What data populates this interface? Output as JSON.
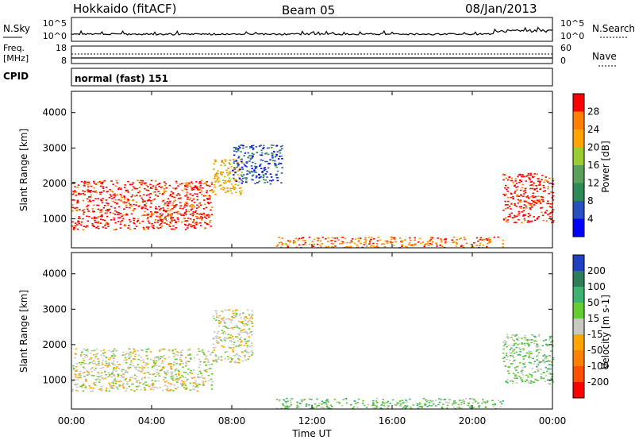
{
  "header": {
    "station": "Hokkaido (fitACF)",
    "beam": "Beam 05",
    "date": "08/Jan/2013"
  },
  "strip": {
    "nsky_label": "N.Sky",
    "nsky_top": "10^5",
    "nsky_bottom": "10^0",
    "nsearch_top": "10^5",
    "nsearch_bottom": "10^0",
    "nsearch_label": "N.Search",
    "freq_label_1": "Freq.",
    "freq_label_2": "[MHz]",
    "freq_top": "18",
    "freq_bottom": "8",
    "nave_top": "60",
    "nave_bottom": "0",
    "nave_label": "Nave",
    "cpid_label": "CPID",
    "cpid_value": "normal (fast) 151"
  },
  "chart_data": [
    {
      "type": "heatmap",
      "panel": "power",
      "ylabel": "Slant Range [km]",
      "yticks": [
        1000,
        2000,
        3000,
        4000
      ],
      "ylim": [
        180,
        4600
      ],
      "xlim": [
        0,
        24
      ],
      "colorbar_label": "Power [dB]",
      "colorbar_ticks": [
        "28",
        "24",
        "20",
        "16",
        "12",
        "8",
        "4"
      ],
      "colorbar_range": [
        0,
        32
      ],
      "colors": [
        "#0000ff",
        "#2850c0",
        "#2e8b57",
        "#5aa05a",
        "#9acd32",
        "#ffa500",
        "#ff7f00",
        "#ff0000"
      ],
      "regions": [
        {
          "name": "nightside echoes",
          "t": [
            0.0,
            7.0
          ],
          "range_km": [
            700,
            2100
          ],
          "level_db": 28
        },
        {
          "name": "rising arc",
          "t": [
            7.0,
            8.5
          ],
          "range_km": [
            1700,
            2700
          ],
          "level_db": 20
        },
        {
          "name": "diffuse high",
          "t": [
            8.0,
            10.5
          ],
          "range_km": [
            2000,
            3100
          ],
          "level_db": 6
        },
        {
          "name": "ground scatter",
          "t": [
            10.2,
            21.5
          ],
          "range_km": [
            200,
            500
          ],
          "level_db": 24
        },
        {
          "name": "morning echoes",
          "t": [
            21.5,
            24.0
          ],
          "range_km": [
            900,
            2300
          ],
          "level_db": 28
        }
      ]
    },
    {
      "type": "heatmap",
      "panel": "velocity",
      "ylabel": "Slant Range [km]",
      "xlabel": "Time UT",
      "xticks": [
        "00:00",
        "04:00",
        "08:00",
        "12:00",
        "16:00",
        "20:00",
        "00:00"
      ],
      "yticks": [
        1000,
        2000,
        3000,
        4000
      ],
      "ylim": [
        180,
        4600
      ],
      "xlim": [
        0,
        24
      ],
      "colorbar_label": "Velocity [m s-1]",
      "colorbar_ticks": [
        "200",
        "100",
        "50",
        "15",
        "-15",
        "-50",
        "-100",
        "-200"
      ],
      "colors": [
        "#2040c0",
        "#2e7d5a",
        "#3cb371",
        "#66cc33",
        "#c8c8c0",
        "#ffa500",
        "#ff7f00",
        "#ff5000",
        "#ff0000"
      ],
      "regions": [
        {
          "name": "ground scatter (grey)",
          "t": [
            0.0,
            7.0
          ],
          "range_km": [
            700,
            1900
          ],
          "velocity": 0
        },
        {
          "name": "rising arc",
          "t": [
            7.0,
            9.0
          ],
          "range_km": [
            1500,
            3000
          ],
          "velocity": 0
        },
        {
          "name": "ground scatter",
          "t": [
            10.2,
            21.5
          ],
          "range_km": [
            200,
            500
          ],
          "velocity": 50
        },
        {
          "name": "morning echoes",
          "t": [
            21.5,
            24.0
          ],
          "range_km": [
            900,
            2300
          ],
          "velocity": 50
        }
      ]
    }
  ]
}
